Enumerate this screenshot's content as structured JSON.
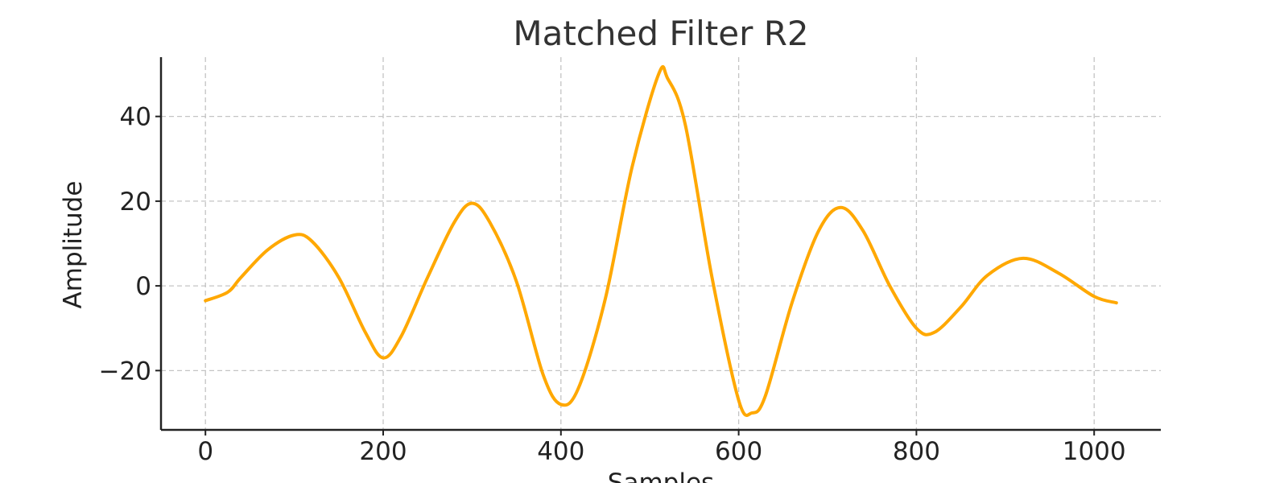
{
  "chart_data": {
    "type": "line",
    "title": "Matched Filter R2",
    "xlabel": "Samples",
    "ylabel": "Amplitude",
    "xlim": [
      -50,
      1075
    ],
    "ylim": [
      -34,
      54
    ],
    "xticks": [
      0,
      200,
      400,
      600,
      800,
      1000
    ],
    "yticks": [
      -20,
      0,
      20,
      40
    ],
    "xtick_labels": [
      "0",
      "200",
      "400",
      "600",
      "800",
      "1000"
    ],
    "ytick_labels": [
      "−20",
      "0",
      "20",
      "40"
    ],
    "grid": true,
    "series": [
      {
        "color": "#ffa800",
        "x": [
          0,
          25,
          40,
          70,
          100,
          120,
          150,
          180,
          200,
          220,
          250,
          280,
          300,
          320,
          350,
          380,
          400,
          420,
          450,
          480,
          510,
          520,
          540,
          570,
          600,
          615,
          630,
          660,
          690,
          715,
          740,
          770,
          800,
          820,
          850,
          880,
          920,
          960,
          1000,
          1025
        ],
        "y": [
          -3.5,
          -1.5,
          2,
          8.5,
          12,
          10.5,
          2,
          -11,
          -17,
          -12,
          2,
          15,
          19.5,
          15,
          1,
          -21,
          -28,
          -24,
          -3,
          28,
          50,
          49,
          38,
          2,
          -27,
          -30,
          -26,
          -4,
          13,
          18.5,
          13,
          0,
          -10,
          -11,
          -5,
          2.5,
          6.5,
          3,
          -2.5,
          -4
        ]
      }
    ]
  }
}
